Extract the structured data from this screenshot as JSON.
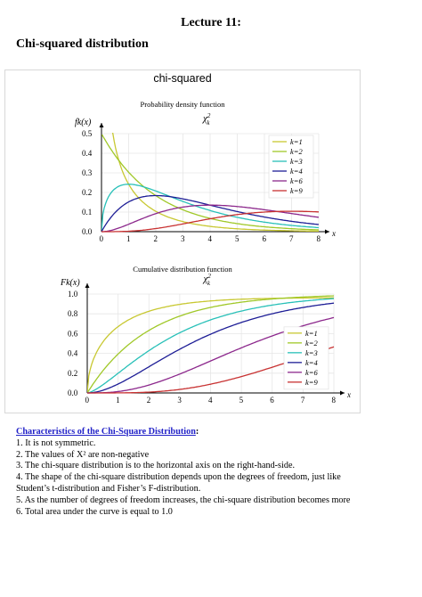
{
  "header": {
    "lecture": "Lecture 11:",
    "title": "Chi-squared distribution"
  },
  "figure": {
    "title": "chi-squared"
  },
  "chart_data": [
    {
      "type": "line",
      "title": "Probability density function",
      "subtitle": "χ²k",
      "ylabel": "fk(x)",
      "xlabel": "x",
      "xlim": [
        0,
        8
      ],
      "ylim": [
        0,
        0.5
      ],
      "xticks": [
        "0",
        "1",
        "2",
        "3",
        "4",
        "5",
        "6",
        "7",
        "8"
      ],
      "yticks": [
        "0.0",
        "0.1",
        "0.2",
        "0.3",
        "0.4",
        "0.5"
      ],
      "grid": true,
      "legend": "top-right",
      "series": [
        {
          "name": "k=1",
          "color": "#c8c832",
          "k": 1,
          "values": "x^(k/2-1) e^(-x/2) / (2^(k/2) Γ(k/2))"
        },
        {
          "name": "k=2",
          "color": "#a0c828",
          "k": 2
        },
        {
          "name": "k=3",
          "color": "#28c0b8",
          "k": 3
        },
        {
          "name": "k=4",
          "color": "#1e1e96",
          "k": 4
        },
        {
          "name": "k=6",
          "color": "#8c288c",
          "k": 6
        },
        {
          "name": "k=9",
          "color": "#c83232",
          "k": 9
        }
      ]
    },
    {
      "type": "line",
      "title": "Cumulative distribution function",
      "subtitle": "χ²k",
      "ylabel": "Fk(x)",
      "xlabel": "x",
      "xlim": [
        0,
        8
      ],
      "ylim": [
        0,
        1.0
      ],
      "xticks": [
        "0",
        "1",
        "2",
        "3",
        "4",
        "5",
        "6",
        "7",
        "8"
      ],
      "yticks": [
        "0.0",
        "0.2",
        "0.4",
        "0.6",
        "0.8",
        "1.0"
      ],
      "grid": true,
      "legend": "bottom-right",
      "series": [
        {
          "name": "k=1",
          "color": "#c8c832",
          "k": 1
        },
        {
          "name": "k=2",
          "color": "#a0c828",
          "k": 2
        },
        {
          "name": "k=3",
          "color": "#28c0b8",
          "k": 3
        },
        {
          "name": "k=4",
          "color": "#1e1e96",
          "k": 4
        },
        {
          "name": "k=6",
          "color": "#8c288c",
          "k": 6
        },
        {
          "name": "k=9",
          "color": "#c83232",
          "k": 9
        }
      ]
    }
  ],
  "characteristics": {
    "heading": "Characteristics of the Chi-Square Distribution",
    "colon": ":",
    "items": [
      "1. It is not symmetric.",
      "2. The values of X² are non-negative",
      "3. The chi-square distribution is to the horizontal axis on the right-hand-side.",
      "4. The shape of the chi-square distribution depends upon the degrees of freedom, just like",
      "Student’s t-distribution and Fisher’s F-distribution.",
      "5. As the number of degrees of freedom increases, the chi-square distribution becomes more",
      "6. Total area under the curve is equal to 1.0"
    ]
  }
}
